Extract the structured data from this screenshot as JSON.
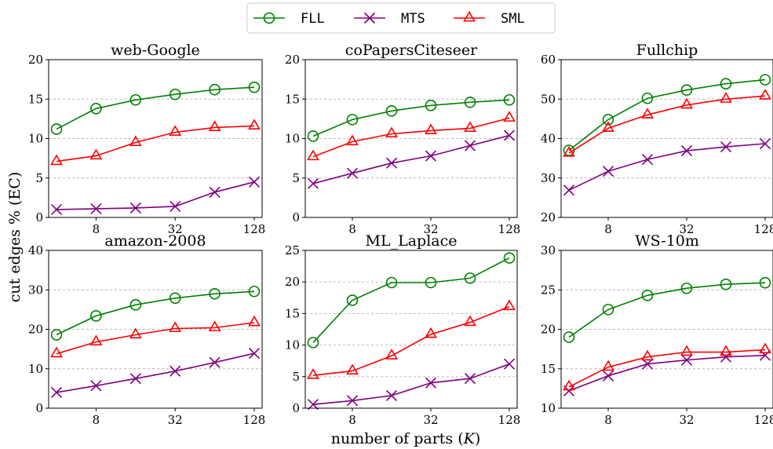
{
  "figure": {
    "xlabel": "number of parts (K)",
    "ylabel": "cut edges % (EC)"
  },
  "legend": {
    "placement": "top-center",
    "entries": [
      {
        "name": "FLL",
        "color": "#008000",
        "marker": "circle"
      },
      {
        "name": "MTS",
        "color": "#800080",
        "marker": "x"
      },
      {
        "name": "SML",
        "color": "#ff0000",
        "marker": "triangle"
      }
    ]
  },
  "chart_data": [
    {
      "type": "line",
      "title": "web-Google",
      "x": [
        4,
        8,
        16,
        32,
        64,
        128
      ],
      "xscale": "log2",
      "xticks": [
        8,
        32,
        128
      ],
      "ylim": [
        0,
        20
      ],
      "yticks": [
        0,
        5,
        10,
        15,
        20
      ],
      "grid": "y-dotted",
      "series": [
        {
          "name": "FLL",
          "values": [
            11.2,
            13.8,
            14.9,
            15.6,
            16.2,
            16.5
          ]
        },
        {
          "name": "MTS",
          "values": [
            1.0,
            1.1,
            1.2,
            1.4,
            3.2,
            4.5
          ]
        },
        {
          "name": "SML",
          "values": [
            7.1,
            7.8,
            9.5,
            10.8,
            11.4,
            11.6
          ]
        }
      ]
    },
    {
      "type": "line",
      "title": "coPapersCiteseer",
      "x": [
        4,
        8,
        16,
        32,
        64,
        128
      ],
      "xscale": "log2",
      "xticks": [
        8,
        32,
        128
      ],
      "ylim": [
        0,
        20
      ],
      "yticks": [
        0,
        5,
        10,
        15,
        20
      ],
      "grid": "y-dotted",
      "series": [
        {
          "name": "FLL",
          "values": [
            10.3,
            12.4,
            13.5,
            14.2,
            14.6,
            14.9
          ]
        },
        {
          "name": "MTS",
          "values": [
            4.3,
            5.6,
            6.9,
            7.8,
            9.1,
            10.4
          ]
        },
        {
          "name": "SML",
          "values": [
            7.7,
            9.6,
            10.6,
            11.0,
            11.3,
            12.6
          ]
        }
      ]
    },
    {
      "type": "line",
      "title": "Fullchip",
      "x": [
        4,
        8,
        16,
        32,
        64,
        128
      ],
      "xscale": "log2",
      "xticks": [
        8,
        32,
        128
      ],
      "ylim": [
        20,
        60
      ],
      "yticks": [
        20,
        30,
        40,
        50,
        60
      ],
      "grid": "y-dotted",
      "series": [
        {
          "name": "FLL",
          "values": [
            37.0,
            44.8,
            50.2,
            52.3,
            53.9,
            54.9
          ]
        },
        {
          "name": "MTS",
          "values": [
            26.9,
            31.7,
            34.7,
            36.9,
            37.9,
            38.7
          ]
        },
        {
          "name": "SML",
          "values": [
            36.3,
            42.6,
            46.0,
            48.5,
            50.0,
            50.8
          ]
        }
      ]
    },
    {
      "type": "line",
      "title": "amazon-2008",
      "x": [
        4,
        8,
        16,
        32,
        64,
        128
      ],
      "xscale": "log2",
      "xticks": [
        8,
        32,
        128
      ],
      "ylim": [
        0,
        40
      ],
      "yticks": [
        0,
        10,
        20,
        30,
        40
      ],
      "grid": "y-dotted",
      "series": [
        {
          "name": "FLL",
          "values": [
            18.6,
            23.4,
            26.2,
            27.9,
            29.0,
            29.6
          ]
        },
        {
          "name": "MTS",
          "values": [
            4.0,
            5.7,
            7.5,
            9.4,
            11.6,
            13.9
          ]
        },
        {
          "name": "SML",
          "values": [
            13.8,
            16.8,
            18.6,
            20.2,
            20.4,
            21.7
          ]
        }
      ]
    },
    {
      "type": "line",
      "title": "ML_Laplace",
      "x": [
        4,
        8,
        16,
        32,
        64,
        128
      ],
      "xscale": "log2",
      "xticks": [
        8,
        32,
        128
      ],
      "ylim": [
        0,
        25
      ],
      "yticks": [
        0,
        5,
        10,
        15,
        20,
        25
      ],
      "grid": "y-dotted",
      "series": [
        {
          "name": "FLL",
          "values": [
            10.4,
            17.1,
            19.9,
            19.9,
            20.6,
            23.8
          ]
        },
        {
          "name": "MTS",
          "values": [
            0.6,
            1.2,
            2.0,
            4.0,
            4.7,
            7.0
          ]
        },
        {
          "name": "SML",
          "values": [
            5.2,
            5.9,
            8.3,
            11.7,
            13.6,
            16.1
          ]
        }
      ]
    },
    {
      "type": "line",
      "title": "WS-10m",
      "x": [
        4,
        8,
        16,
        32,
        64,
        128
      ],
      "xscale": "log2",
      "xticks": [
        8,
        32,
        128
      ],
      "ylim": [
        10,
        30
      ],
      "yticks": [
        10,
        15,
        20,
        25,
        30
      ],
      "grid": "y-dotted",
      "series": [
        {
          "name": "FLL",
          "values": [
            19.0,
            22.5,
            24.3,
            25.2,
            25.7,
            25.9
          ]
        },
        {
          "name": "MTS",
          "values": [
            12.2,
            14.1,
            15.6,
            16.1,
            16.5,
            16.7
          ]
        },
        {
          "name": "SML",
          "values": [
            12.7,
            15.2,
            16.5,
            17.1,
            17.1,
            17.4
          ]
        }
      ]
    }
  ]
}
